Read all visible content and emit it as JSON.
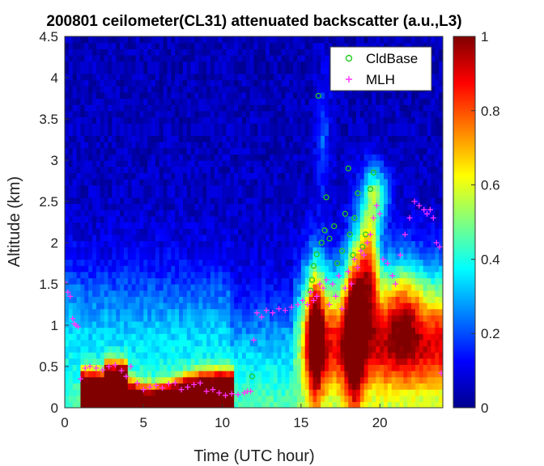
{
  "chart_data": {
    "type": "heatmap",
    "title": "200801 ceilometer(CL31) attenuated backscatter (a.u.,L3)",
    "xlabel": "Time (UTC hour)",
    "ylabel": "Altitude (km)",
    "xlim": [
      0,
      24
    ],
    "ylim": [
      0,
      4.5
    ],
    "xticks": [
      0,
      5,
      10,
      15,
      20
    ],
    "yticks": [
      0,
      0.5,
      1,
      1.5,
      2,
      2.5,
      3,
      3.5,
      4,
      4.5
    ],
    "colorbar": {
      "min": 0,
      "max": 1,
      "ticks": [
        0,
        0.2,
        0.4,
        0.6,
        0.8,
        1
      ],
      "colormap": "jet"
    },
    "grid": false,
    "legend_position": "top-right",
    "series": [
      {
        "name": "CldBase",
        "marker": "circle",
        "color": "#22cc22",
        "x": [
          11.9,
          15.6,
          15.7,
          15.8,
          16.0,
          16.1,
          16.3,
          16.5,
          16.6,
          16.8,
          17.1,
          17.3,
          17.6,
          17.8,
          18.0,
          18.1,
          18.3,
          18.4,
          18.6,
          18.9,
          19.1,
          19.4,
          19.6
        ],
        "y": [
          0.38,
          1.42,
          1.55,
          1.72,
          1.86,
          3.78,
          2.0,
          2.15,
          2.55,
          2.05,
          2.2,
          1.75,
          1.9,
          2.35,
          2.9,
          2.1,
          1.85,
          2.3,
          2.6,
          1.95,
          2.1,
          2.65,
          2.85
        ]
      },
      {
        "name": "MLH",
        "marker": "plus",
        "color": "#ff33ff",
        "x": [
          0.0,
          0.2,
          0.35,
          0.5,
          0.6,
          0.7,
          0.85,
          1.0,
          1.3,
          1.6,
          2.0,
          2.4,
          2.8,
          3.2,
          3.6,
          3.9,
          4.2,
          4.6,
          5.0,
          5.4,
          5.8,
          6.2,
          6.6,
          7.0,
          7.4,
          7.8,
          8.2,
          8.6,
          9.0,
          9.4,
          9.8,
          10.2,
          10.6,
          11.0,
          11.4,
          11.6,
          11.8,
          12.0,
          12.2,
          12.5,
          12.8,
          13.2,
          13.6,
          14.0,
          14.4,
          14.8,
          15.1,
          15.4,
          15.6,
          15.8,
          16.0,
          16.2,
          16.4,
          16.6,
          16.8,
          17.0,
          17.2,
          17.4,
          17.6,
          17.8,
          18.0,
          18.2,
          18.4,
          18.6,
          18.8,
          19.0,
          19.2,
          19.4,
          19.6,
          19.8,
          20.0,
          20.2,
          20.5,
          20.8,
          21.0,
          21.3,
          21.6,
          21.9,
          22.2,
          22.5,
          22.8,
          23.0,
          23.2,
          23.4,
          23.6,
          23.8,
          23.9
        ],
        "y": [
          1.52,
          1.4,
          1.35,
          1.08,
          1.02,
          1.0,
          0.98,
          0.35,
          0.48,
          0.5,
          0.48,
          0.46,
          0.5,
          0.52,
          0.45,
          0.38,
          0.5,
          0.3,
          0.22,
          0.25,
          0.27,
          0.24,
          0.29,
          0.3,
          0.22,
          0.25,
          0.28,
          0.3,
          0.2,
          0.22,
          0.18,
          0.15,
          0.17,
          0.16,
          0.18,
          0.2,
          0.2,
          0.82,
          1.15,
          1.1,
          1.18,
          1.15,
          1.2,
          1.18,
          1.22,
          1.25,
          1.3,
          1.25,
          1.4,
          1.3,
          1.35,
          1.5,
          1.45,
          1.55,
          1.25,
          1.5,
          1.35,
          1.6,
          1.2,
          1.45,
          1.65,
          1.5,
          1.8,
          1.7,
          1.9,
          1.85,
          2.0,
          2.1,
          2.3,
          2.45,
          2.35,
          1.8,
          1.75,
          1.6,
          1.5,
          1.85,
          2.1,
          2.3,
          2.5,
          2.45,
          2.4,
          2.35,
          2.4,
          2.3,
          2.0,
          1.95,
          0.42
        ]
      }
    ]
  }
}
